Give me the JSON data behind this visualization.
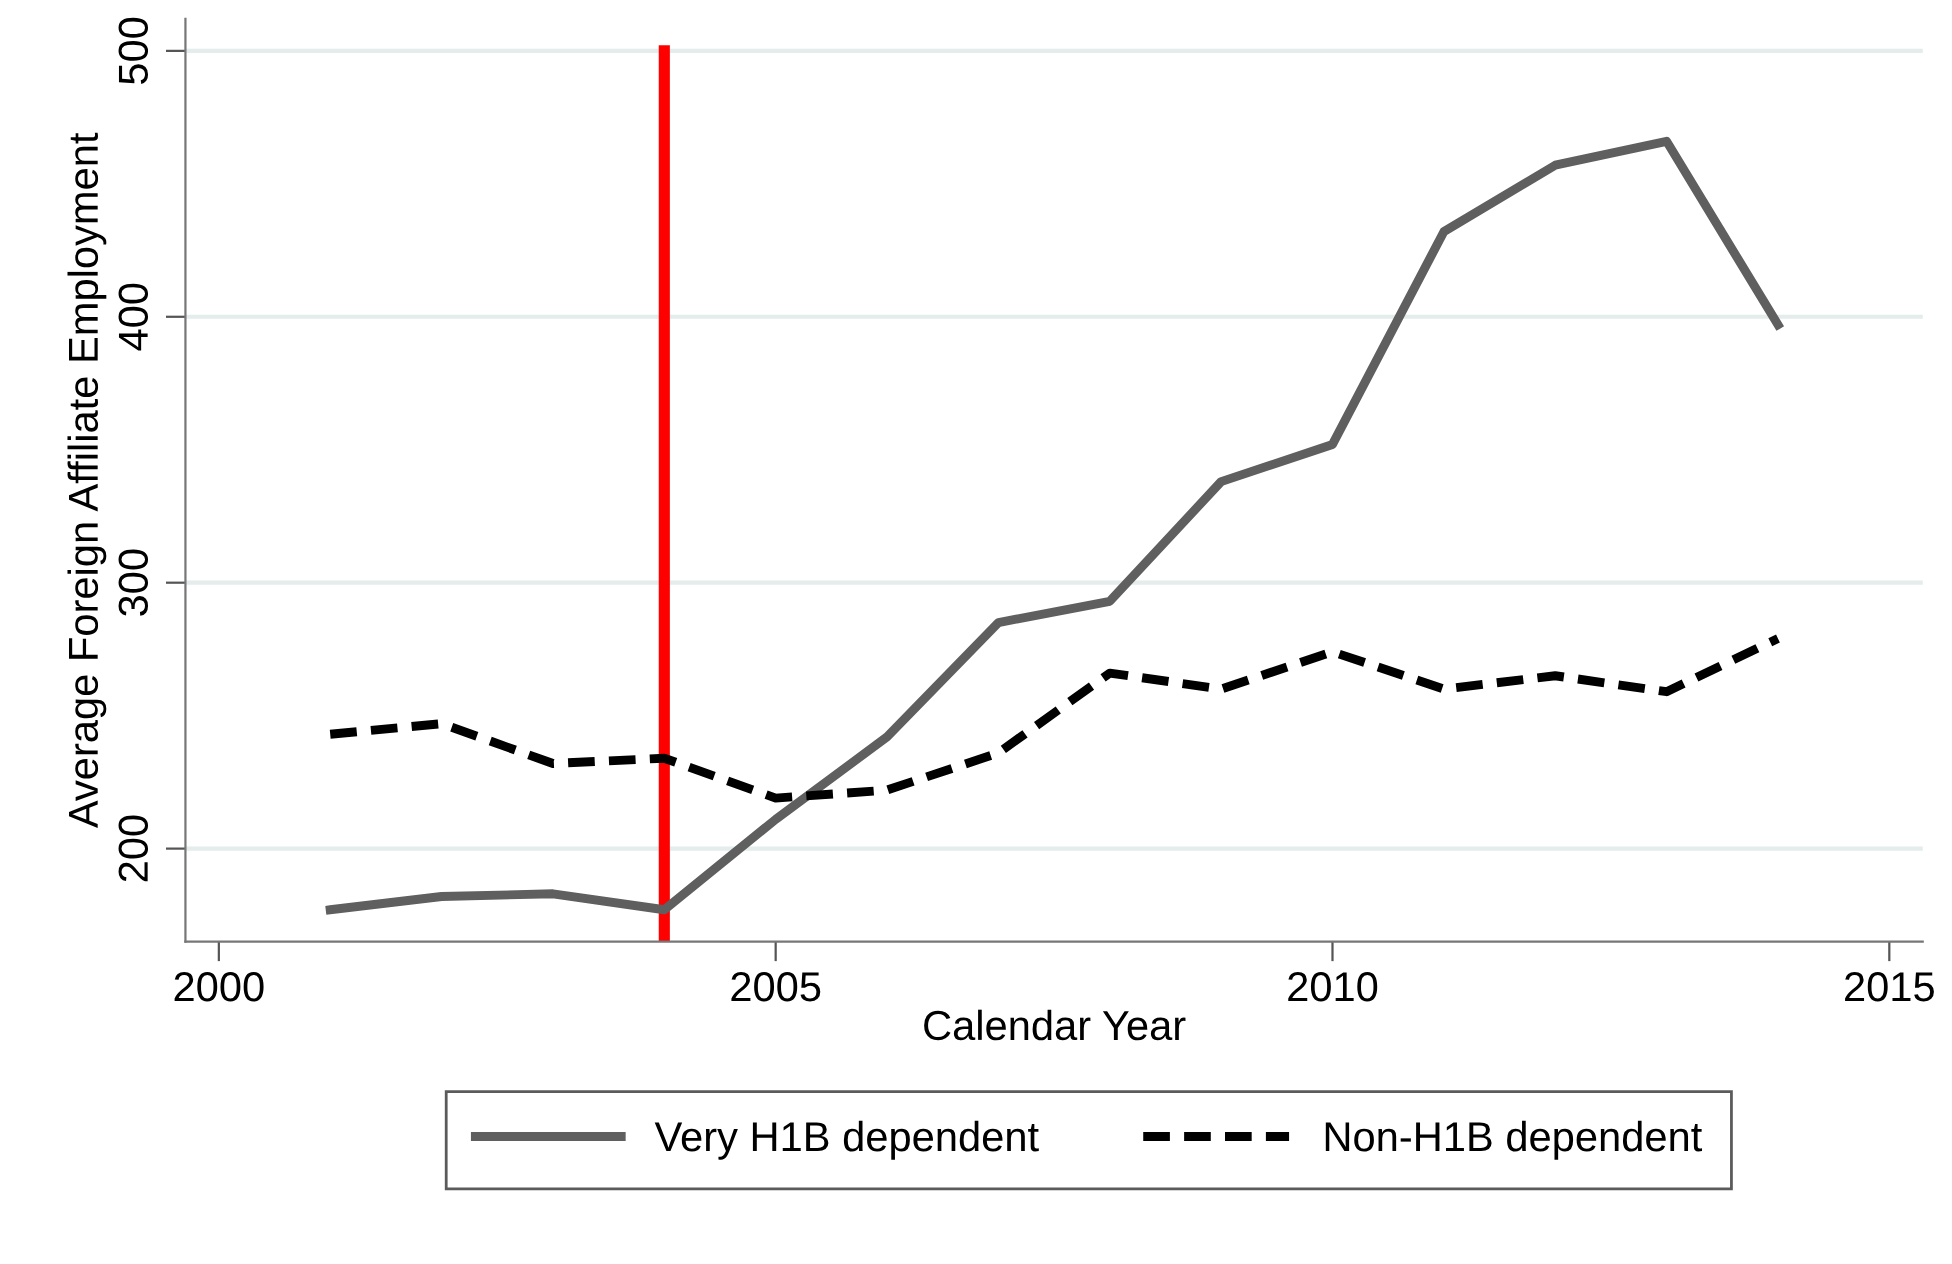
{
  "chart_data": {
    "type": "line",
    "xlabel": "Calendar Year",
    "ylabel": "Average Foreign Affiliate Employment",
    "x": [
      2001,
      2002,
      2003,
      2004,
      2005,
      2006,
      2007,
      2008,
      2009,
      2010,
      2011,
      2012,
      2013,
      2014
    ],
    "series": [
      {
        "name": "Very H1B dependent",
        "color": "#5f5f5f",
        "line_style": "solid",
        "values": [
          177,
          182,
          183,
          177,
          211,
          242,
          285,
          293,
          338,
          352,
          432,
          457,
          466,
          397
        ]
      },
      {
        "name": "Non-H1B dependent",
        "color": "#000000",
        "line_style": "dashed",
        "values": [
          243,
          247,
          232,
          234,
          219,
          222,
          236,
          266,
          260,
          274,
          260,
          265,
          259,
          279
        ]
      }
    ],
    "xlim": [
      1999.7,
      2015.3
    ],
    "xticks": [
      2000,
      2005,
      2010,
      2015
    ],
    "ylim": [
      165,
      512
    ],
    "yticks": [
      200,
      300,
      400,
      500
    ],
    "ref_lines": [
      {
        "axis": "x",
        "value": 2004,
        "color": "#ff0000"
      }
    ],
    "grid": "y",
    "legend": "bottom",
    "marker": "none"
  }
}
